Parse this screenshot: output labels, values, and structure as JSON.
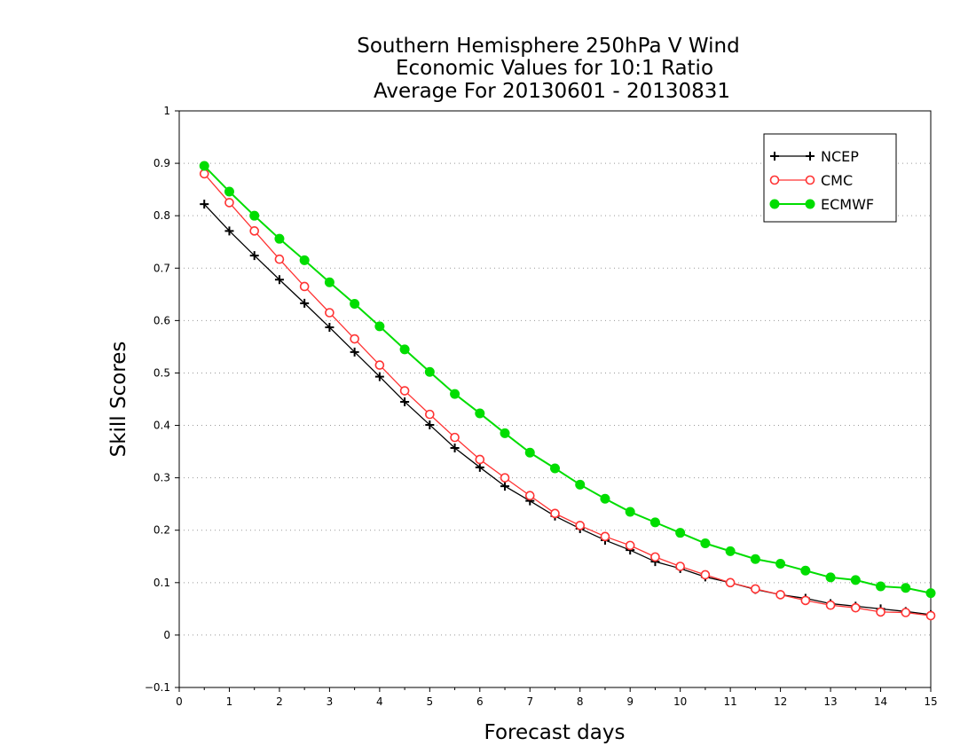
{
  "chart_data": {
    "type": "line",
    "title": [
      "Southern Hemisphere 250hPa V Wind",
      "Economic Values for 10:1 Ratio",
      "Average For 20130601 - 20130831"
    ],
    "xlabel": "Forecast days",
    "ylabel": "Skill Scores",
    "xlim": [
      0,
      15
    ],
    "ylim": [
      -0.1,
      1
    ],
    "xticks": [
      "0",
      "1",
      "2",
      "3",
      "4",
      "5",
      "6",
      "7",
      "8",
      "9",
      "10",
      "11",
      "12",
      "13",
      "14",
      "15"
    ],
    "yticks": [
      "-0.1",
      "0",
      "0.1",
      "0.2",
      "0.3",
      "0.4",
      "0.5",
      "0.6",
      "0.7",
      "0.8",
      "0.9",
      "1"
    ],
    "grid": "horizontal dotted",
    "legend_position": "top-right",
    "x": [
      0.5,
      1,
      1.5,
      2,
      2.5,
      3,
      3.5,
      4,
      4.5,
      5,
      5.5,
      6,
      6.5,
      7,
      7.5,
      8,
      8.5,
      9,
      9.5,
      10,
      10.5,
      11,
      11.5,
      12,
      12.5,
      13,
      13.5,
      14,
      14.5,
      15
    ],
    "series": [
      {
        "name": "NCEP",
        "color": "#000000",
        "marker": "plus",
        "values": [
          0.822,
          0.771,
          0.724,
          0.678,
          0.633,
          0.587,
          0.54,
          0.493,
          0.445,
          0.401,
          0.357,
          0.32,
          0.284,
          0.256,
          0.227,
          0.203,
          0.181,
          0.162,
          0.14,
          0.127,
          0.111,
          0.1,
          0.087,
          0.077,
          0.07,
          0.06,
          0.055,
          0.05,
          0.045,
          0.039
        ]
      },
      {
        "name": "CMC",
        "color": "#ff3333",
        "marker": "open-circle",
        "values": [
          0.88,
          0.825,
          0.771,
          0.717,
          0.665,
          0.615,
          0.565,
          0.515,
          0.466,
          0.421,
          0.377,
          0.335,
          0.3,
          0.266,
          0.232,
          0.209,
          0.188,
          0.171,
          0.149,
          0.131,
          0.115,
          0.1,
          0.088,
          0.077,
          0.066,
          0.057,
          0.052,
          0.044,
          0.043,
          0.037
        ]
      },
      {
        "name": "ECMWF",
        "color": "#00dd00",
        "marker": "filled-circle",
        "values": [
          0.895,
          0.846,
          0.8,
          0.756,
          0.715,
          0.673,
          0.632,
          0.589,
          0.545,
          0.502,
          0.46,
          0.423,
          0.385,
          0.348,
          0.318,
          0.287,
          0.26,
          0.235,
          0.215,
          0.195,
          0.175,
          0.16,
          0.145,
          0.136,
          0.123,
          0.11,
          0.105,
          0.093,
          0.09,
          0.08
        ]
      }
    ]
  }
}
